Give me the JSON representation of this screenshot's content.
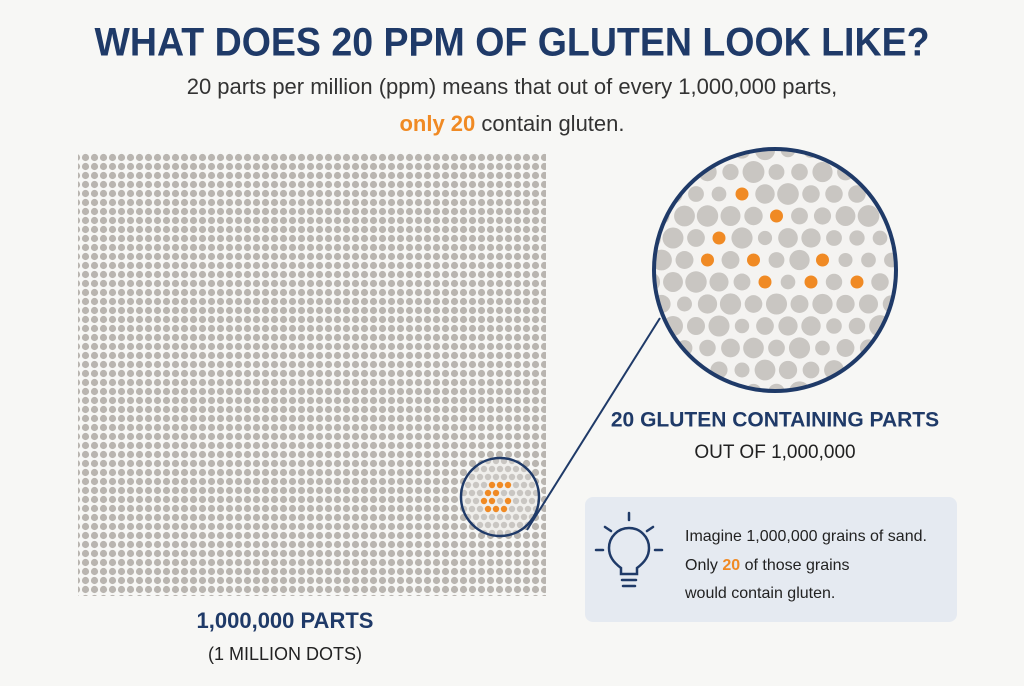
{
  "header": {
    "title": "WHAT DOES 20 PPM OF GLUTEN LOOK LIKE?",
    "subtitle_line1": "20 parts per million (ppm) means that out of every 1,000,000 parts,",
    "subtitle_highlight": "only 20",
    "subtitle_rest": " contain gluten."
  },
  "grid_label": {
    "title": "1,000,000 PARTS",
    "subtitle": "(1 MILLION DOTS)"
  },
  "zoom_label": {
    "title": "20 GLUTEN CONTAINING PARTS",
    "subtitle": "OUT OF 1,000,000"
  },
  "callout": {
    "line1": "Imagine 1,000,000 grains of sand.",
    "line2_start": "Only ",
    "line2_highlight": "20",
    "line2_rest": " of those grains",
    "line3": "would contain gluten."
  }
}
